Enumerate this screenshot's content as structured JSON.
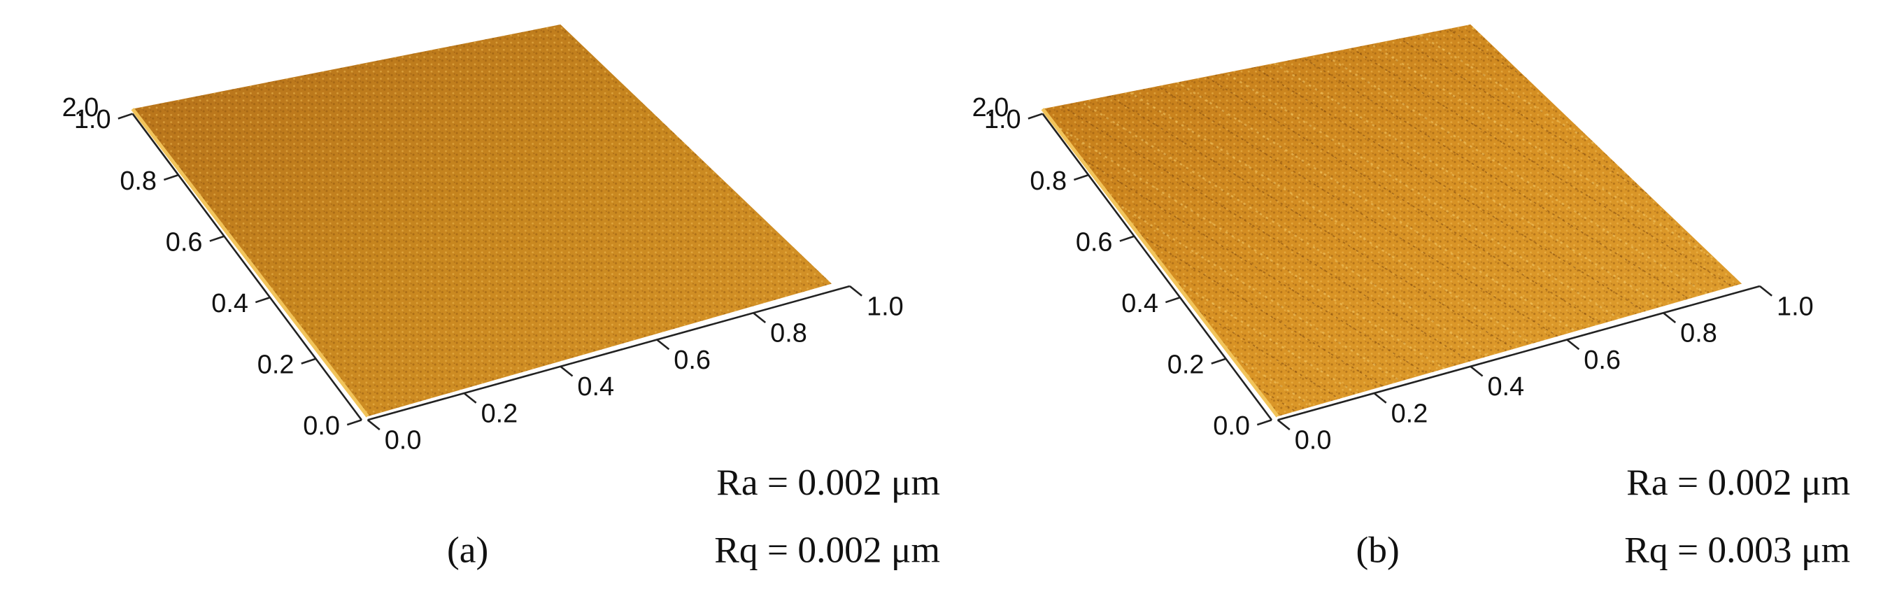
{
  "panels": [
    {
      "label": "(a)",
      "ra": "Ra = 0.002 μm",
      "rq": "Rq = 0.002 μm",
      "z_ticks": [
        "2.0"
      ],
      "y_ticks": [
        "0.0",
        "0.2",
        "0.4",
        "0.6",
        "0.8",
        "1.0"
      ],
      "x_ticks": [
        "0.0",
        "0.2",
        "0.4",
        "0.6",
        "0.8",
        "1.0"
      ]
    },
    {
      "label": "(b)",
      "ra": "Ra = 0.002 μm",
      "rq": "Rq = 0.003 μm",
      "z_ticks": [
        "2.0"
      ],
      "y_ticks": [
        "0.0",
        "0.2",
        "0.4",
        "0.6",
        "0.8",
        "1.0"
      ],
      "x_ticks": [
        "0.0",
        "0.2",
        "0.4",
        "0.6",
        "0.8",
        "1.0"
      ]
    }
  ]
}
